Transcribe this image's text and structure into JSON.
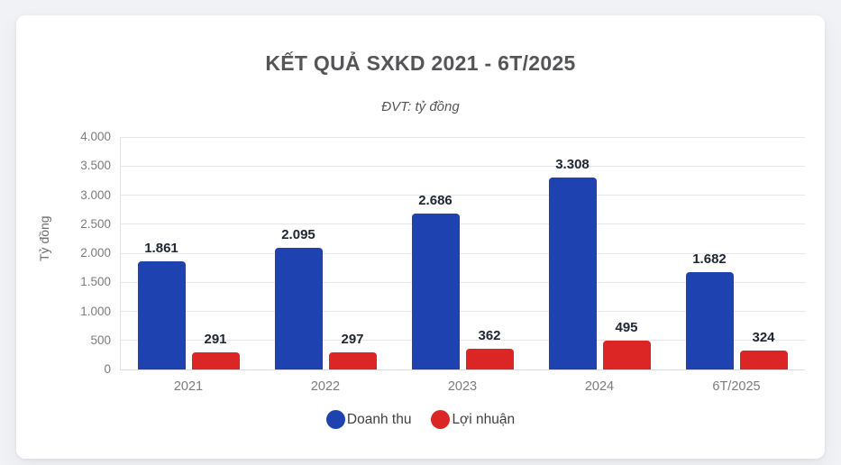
{
  "chart_data": {
    "type": "bar",
    "title": "KẾT QUẢ SXKD 2021 - 6T/2025",
    "subtitle": "ĐVT: tỷ đồng",
    "ylabel": "Tỷ đồng",
    "xlabel": "",
    "categories": [
      "2021",
      "2022",
      "2023",
      "2024",
      "6T/2025"
    ],
    "series": [
      {
        "name": "Doanh thu",
        "color": "#1e43b0",
        "values": [
          1861,
          2095,
          2686,
          3308,
          1682
        ],
        "labels": [
          "1.861",
          "2.095",
          "2.686",
          "3.308",
          "1.682"
        ]
      },
      {
        "name": "Lợi nhuận",
        "color": "#dc2626",
        "values": [
          291,
          297,
          362,
          495,
          324
        ],
        "labels": [
          "291",
          "297",
          "362",
          "495",
          "324"
        ]
      }
    ],
    "ylim": [
      0,
      4000
    ],
    "ytick_step": 500,
    "yticks": [
      "0",
      "500",
      "1.000",
      "1.500",
      "2.000",
      "2.500",
      "3.000",
      "3.500",
      "4.000"
    ],
    "grid": "horizontal",
    "legend_position": "bottom"
  }
}
